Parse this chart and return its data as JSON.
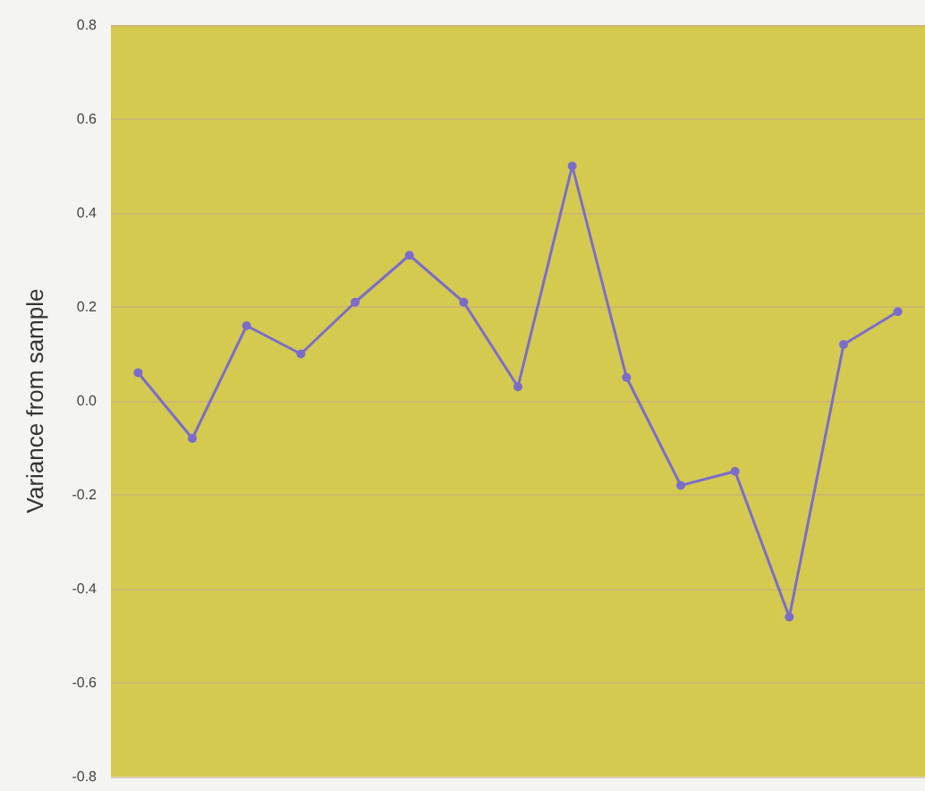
{
  "chart_data": {
    "type": "line",
    "ylabel": "Variance from sample",
    "categories": [
      null,
      null,
      null,
      null,
      null,
      null,
      null,
      null,
      null,
      null,
      null,
      null,
      null,
      null,
      null
    ],
    "series": [
      {
        "color": "#7b6ccc",
        "values": [
          0.06,
          -0.08,
          0.16,
          0.1,
          0.21,
          0.31,
          0.21,
          0.03,
          0.5,
          0.05,
          -0.18,
          -0.15,
          -0.46,
          0.12,
          0.19
        ]
      }
    ],
    "ylim": [
      -0.8,
      0.8
    ],
    "yticks": [
      {
        "value": -0.8,
        "label": "-0.8"
      },
      {
        "value": -0.6,
        "label": "-0.6"
      },
      {
        "value": -0.4,
        "label": "-0.4"
      },
      {
        "value": -0.2,
        "label": "-0.2"
      },
      {
        "value": 0,
        "label": "0.0"
      },
      {
        "value": 0.2,
        "label": "0.2"
      },
      {
        "value": 0.4,
        "label": "0.4"
      },
      {
        "value": 0.6,
        "label": "0.6"
      },
      {
        "value": 0.8,
        "label": "0.8"
      }
    ],
    "grid": "y",
    "marker": "circle",
    "line_style": "solid"
  }
}
